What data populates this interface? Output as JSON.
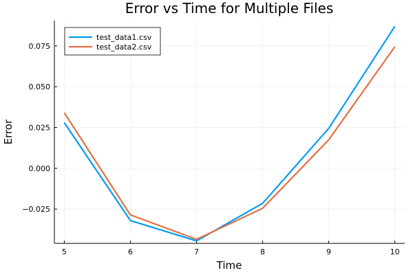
{
  "chart_data": {
    "type": "line",
    "title": "Error vs Time for Multiple Files",
    "xlabel": "Time",
    "ylabel": "Error",
    "xlim": [
      4.85,
      10.15
    ],
    "ylim": [
      -0.046,
      0.0905
    ],
    "xticks": [
      5,
      6,
      7,
      8,
      9,
      10
    ],
    "xtick_labels": [
      "5",
      "6",
      "7",
      "8",
      "9",
      "10"
    ],
    "yticks": [
      -0.025,
      0.0,
      0.025,
      0.05,
      0.075
    ],
    "ytick_labels": [
      "−0.025",
      "0.000",
      "0.025",
      "0.050",
      "0.075"
    ],
    "grid": true,
    "legend_position": "top-left",
    "x": [
      5,
      6,
      7,
      8,
      9,
      10
    ],
    "series": [
      {
        "name": "test_data1.csv",
        "color": "#009af9",
        "values": [
          0.028,
          -0.032,
          -0.0445,
          -0.0215,
          0.0245,
          0.087
        ]
      },
      {
        "name": "test_data2.csv",
        "color": "#e26f46",
        "values": [
          0.034,
          -0.0285,
          -0.0435,
          -0.0245,
          0.0175,
          0.0745
        ]
      }
    ]
  }
}
